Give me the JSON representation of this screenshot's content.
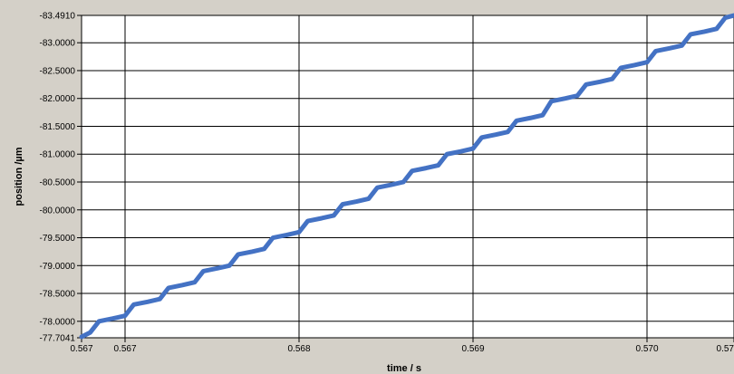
{
  "chart_data": {
    "type": "line",
    "title": "",
    "xlabel": "time  / s",
    "ylabel": "position  /µm",
    "xlim": [
      0.56675,
      0.5705
    ],
    "ylim": [
      -83.491,
      -77.7041
    ],
    "x_tick_values": [
      0.56675,
      0.567,
      0.568,
      0.569,
      0.57,
      0.5705
    ],
    "x_tick_labels": [
      "0.567",
      "0.567",
      "0.568",
      "0.569",
      "0.570",
      "0.57"
    ],
    "y_tick_values": [
      -77.7041,
      -78.0,
      -78.5,
      -79.0,
      -79.5,
      -80.0,
      -80.5,
      -81.0,
      -81.5,
      -82.0,
      -82.5,
      -83.0,
      -83.491
    ],
    "y_tick_labels": [
      "-77.7041",
      "-78.0000",
      "-78.5000",
      "-79.0000",
      "-79.5000",
      "-80.0000",
      "-80.5000",
      "-81.0000",
      "-81.5000",
      "-82.0000",
      "-82.5000",
      "-83.0000",
      "-83.4910"
    ],
    "grid": true,
    "line_color": "#4472c4",
    "series": [
      {
        "x": [
          0.56675,
          0.5668,
          0.56685,
          0.56693,
          0.567,
          0.56705,
          0.56713,
          0.5672,
          0.56725,
          0.56733,
          0.5674,
          0.56745,
          0.56753,
          0.5676,
          0.56765,
          0.56773,
          0.5678,
          0.56785,
          0.56793,
          0.568,
          0.56805,
          0.56813,
          0.5682,
          0.56825,
          0.56833,
          0.5684,
          0.56845,
          0.56853,
          0.5686,
          0.56865,
          0.56873,
          0.5688,
          0.56885,
          0.56893,
          0.569,
          0.56905,
          0.56913,
          0.5692,
          0.56925,
          0.56933,
          0.5694,
          0.56945,
          0.56953,
          0.5696,
          0.56965,
          0.56973,
          0.5698,
          0.56985,
          0.56993,
          0.57,
          0.57005,
          0.57013,
          0.5702,
          0.57025,
          0.57033,
          0.5704,
          0.57045,
          0.5705
        ],
        "y": [
          -77.72,
          -77.8,
          -78.0,
          -78.05,
          -78.1,
          -78.3,
          -78.35,
          -78.4,
          -78.6,
          -78.65,
          -78.7,
          -78.9,
          -78.95,
          -79.0,
          -79.2,
          -79.25,
          -79.3,
          -79.5,
          -79.55,
          -79.6,
          -79.8,
          -79.85,
          -79.9,
          -80.1,
          -80.15,
          -80.2,
          -80.4,
          -80.45,
          -80.5,
          -80.7,
          -80.75,
          -80.8,
          -81.0,
          -81.05,
          -81.1,
          -81.3,
          -81.35,
          -81.4,
          -81.6,
          -81.65,
          -81.7,
          -81.95,
          -82.0,
          -82.05,
          -82.25,
          -82.3,
          -82.35,
          -82.55,
          -82.6,
          -82.65,
          -82.85,
          -82.9,
          -82.95,
          -83.15,
          -83.2,
          -83.25,
          -83.45,
          -83.49
        ]
      }
    ]
  }
}
